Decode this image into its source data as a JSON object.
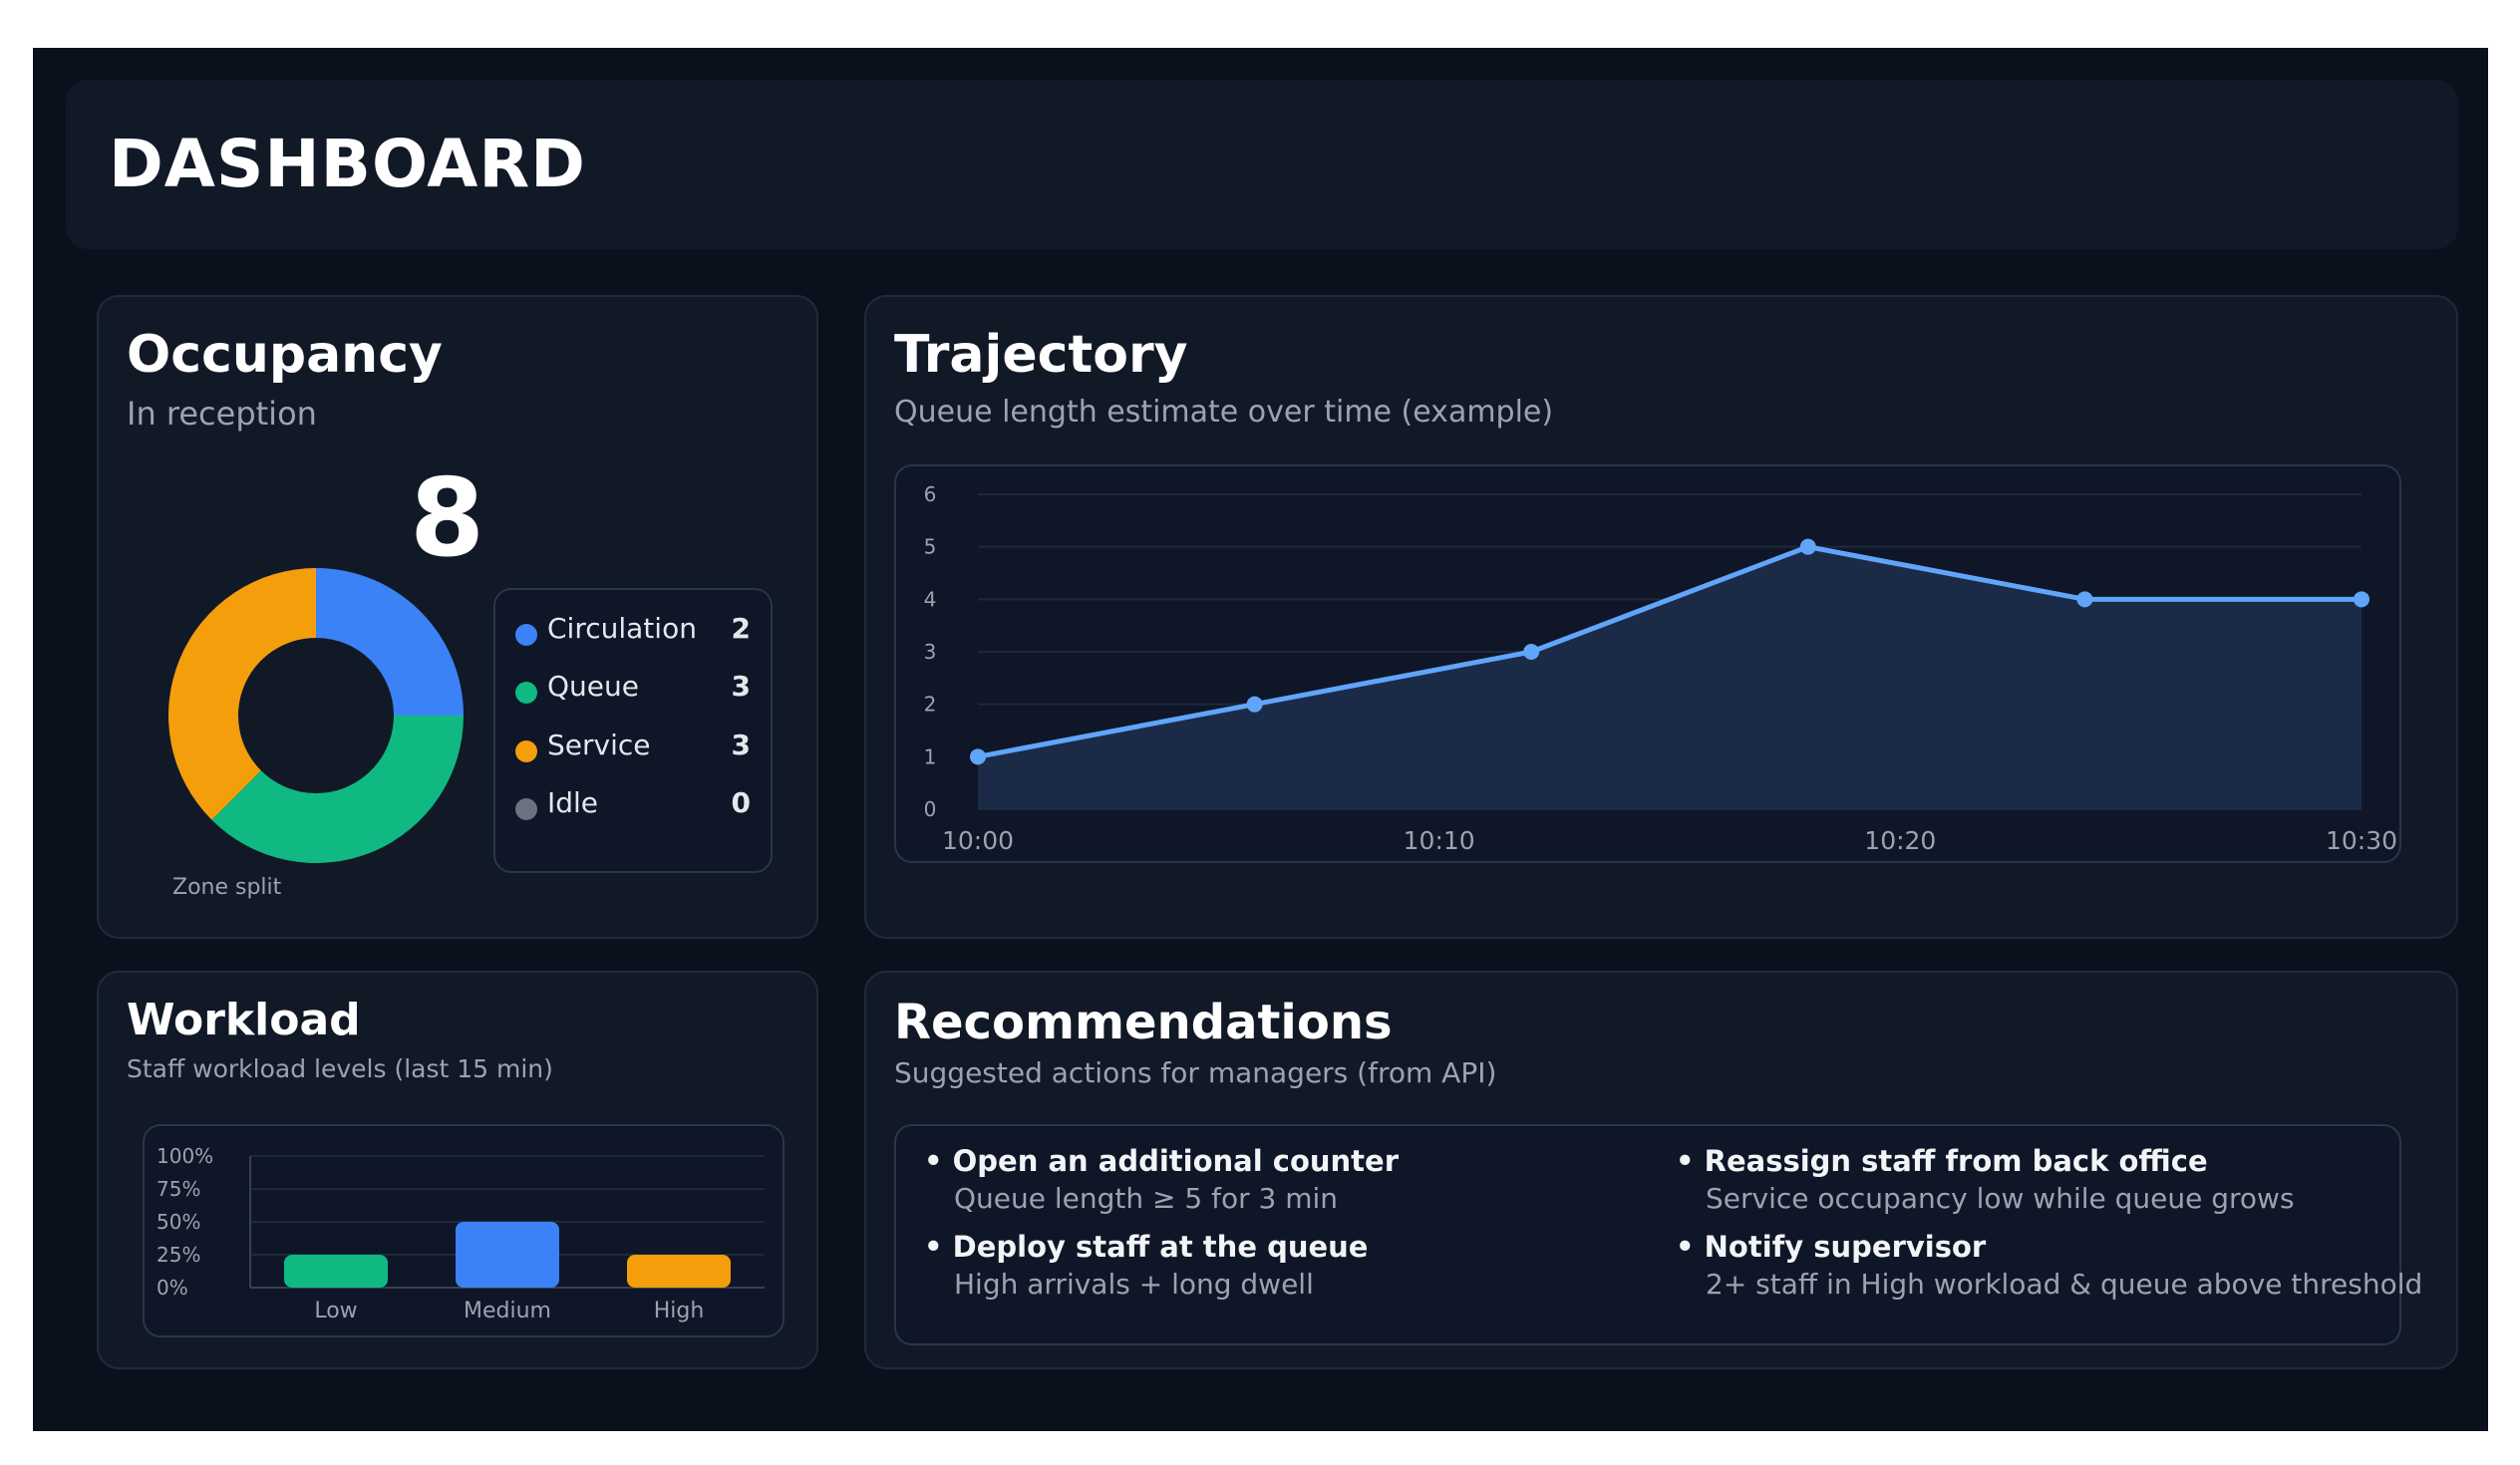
{
  "header": {
    "title": "DASHBOARD"
  },
  "colors": {
    "circulation": "#3b82f6",
    "queue": "#10b981",
    "service": "#f59e0b",
    "idle": "#6b7280",
    "line": "#60a5fa"
  },
  "occupancy": {
    "title": "Occupancy",
    "subtitle": "In reception",
    "count": "8",
    "donut_caption": "Zone split",
    "legend": [
      {
        "label": "Circulation",
        "value": "2",
        "color": "#3b82f6"
      },
      {
        "label": "Queue",
        "value": "3",
        "color": "#10b981"
      },
      {
        "label": "Service",
        "value": "3",
        "color": "#f59e0b"
      },
      {
        "label": "Idle",
        "value": "0",
        "color": "#6b7280"
      }
    ]
  },
  "trajectory": {
    "title": "Trajectory",
    "subtitle": "Queue length estimate over time (example)"
  },
  "workload": {
    "title": "Workload",
    "subtitle": "Staff workload levels (last 15 min)"
  },
  "recommendations": {
    "title": "Recommendations",
    "subtitle": "Suggested actions for managers (from API)",
    "items": [
      {
        "title": "• Open an additional counter",
        "detail": "Queue length ≥ 5 for 3 min"
      },
      {
        "title": "• Deploy staff at the queue",
        "detail": "High arrivals + long dwell"
      },
      {
        "title": "• Reassign staff from back office",
        "detail": "Service occupancy low while queue grows"
      },
      {
        "title": "• Notify supervisor",
        "detail": "2+ staff in High workload & queue above threshold"
      }
    ]
  },
  "chart_data": [
    {
      "type": "pie",
      "title": "",
      "categories": [
        "Circulation",
        "Queue",
        "Service",
        "Idle"
      ],
      "values": [
        2,
        3,
        3,
        0
      ],
      "annotations": [
        "Zone split"
      ],
      "donut": true
    },
    {
      "type": "area",
      "title": "",
      "x": [
        "10:00",
        "10:06",
        "10:12",
        "10:18",
        "10:24",
        "10:30"
      ],
      "values": [
        1,
        2,
        3,
        5,
        4,
        4
      ],
      "x_ticks": [
        "10:00",
        "10:10",
        "10:20",
        "10:30"
      ],
      "y_ticks": [
        "0",
        "1",
        "2",
        "3",
        "4",
        "5",
        "6"
      ],
      "ylim": [
        0,
        6
      ],
      "grid": true
    },
    {
      "type": "bar",
      "title": "",
      "categories": [
        "Low",
        "Medium",
        "High"
      ],
      "values": [
        25,
        50,
        25
      ],
      "y_ticks": [
        "0%",
        "25%",
        "50%",
        "75%",
        "100%"
      ],
      "ylim": [
        0,
        100
      ],
      "grid": true
    }
  ]
}
